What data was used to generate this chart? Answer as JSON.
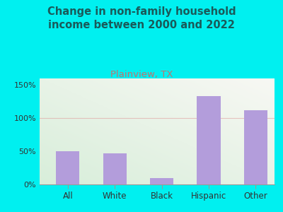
{
  "title": "Change in non-family household\nincome between 2000 and 2022",
  "subtitle": "Plainview, TX",
  "categories": [
    "All",
    "White",
    "Black",
    "Hispanic",
    "Other"
  ],
  "values": [
    50,
    47,
    10,
    133,
    112
  ],
  "bar_color": "#b39ddb",
  "title_fontsize": 10.5,
  "subtitle_fontsize": 9.5,
  "subtitle_color": "#c2736e",
  "title_color": "#1a5a5a",
  "background_color": "#00f0f0",
  "plot_bg_left": "#d8eeda",
  "plot_bg_right": "#f8f8f4",
  "ylim": [
    0,
    160
  ],
  "yticks": [
    0,
    50,
    100,
    150
  ],
  "ytick_labels": [
    "0%",
    "50%",
    "100%",
    "150%"
  ],
  "grid_color": "#e0a0a0",
  "grid_alpha": 0.6,
  "grid_linewidth": 0.8
}
